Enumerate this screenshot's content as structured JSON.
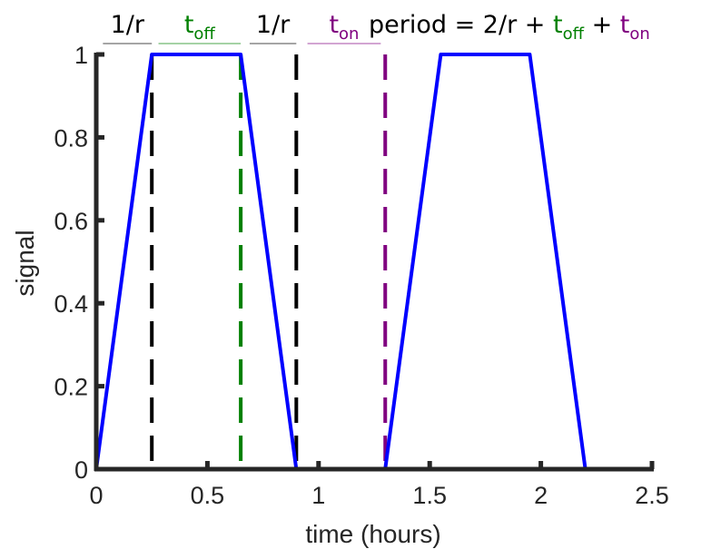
{
  "chart_data": {
    "type": "line",
    "title": "",
    "xlabel": "time (hours)",
    "ylabel": "signal",
    "xlim": [
      0,
      2.5
    ],
    "ylim": [
      0,
      1
    ],
    "grid": false,
    "x_ticks": [
      "0",
      "0.5",
      "1",
      "1.5",
      "2",
      "2.5"
    ],
    "y_ticks": [
      "0",
      "0.2",
      "0.4",
      "0.6",
      "0.8",
      "1"
    ],
    "series": [
      {
        "color": "#0000ff",
        "points": [
          [
            0,
            0
          ],
          [
            0.25,
            1
          ],
          [
            0.65,
            1
          ],
          [
            0.9,
            0
          ],
          [
            1.3,
            0
          ],
          [
            1.55,
            1
          ],
          [
            1.95,
            1
          ],
          [
            2.2,
            0
          ],
          [
            2.5,
            0
          ]
        ]
      }
    ],
    "markers": [
      {
        "x": 0.25,
        "color": "#000000"
      },
      {
        "x": 0.65,
        "color": "#008000"
      },
      {
        "x": 0.9,
        "color": "#000000"
      },
      {
        "x": 1.3,
        "color": "#800080"
      }
    ],
    "annotations": [
      {
        "base": "1/r",
        "sub": "",
        "color": "#000000",
        "x_start": 0.03,
        "x_end": 0.25
      },
      {
        "base": "t",
        "sub": "off",
        "color": "#008000",
        "x_start": 0.28,
        "x_end": 0.65
      },
      {
        "base": "1/r",
        "sub": "",
        "color": "#000000",
        "x_start": 0.69,
        "x_end": 0.9
      },
      {
        "base": "t",
        "sub": "on",
        "color": "#800080",
        "x_start": 0.95,
        "x_end": 1.28
      }
    ],
    "formula": {
      "prefix": "period = 2/r + ",
      "t_off_base": "t",
      "t_off_sub": "off",
      "middle": " + ",
      "t_on_base": "t",
      "t_on_sub": "on",
      "black": "#000000",
      "green": "#008000",
      "purple": "#800080"
    }
  }
}
